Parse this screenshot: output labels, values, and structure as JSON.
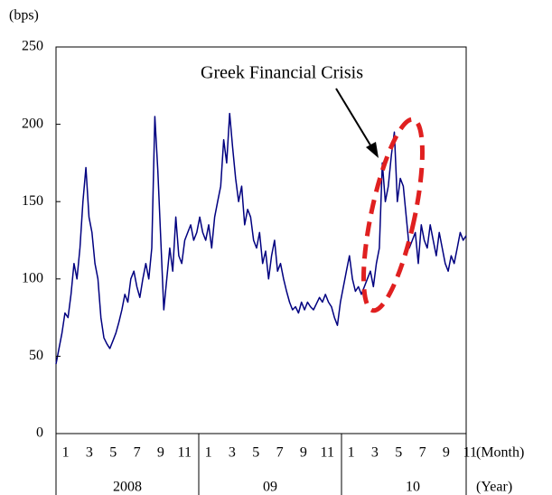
{
  "chart_data": {
    "type": "line",
    "y_label": "(bps)",
    "x_label": "(Month)",
    "year_label": "(Year)",
    "annotation": "Greek Financial Crisis",
    "ylim": [
      0,
      250
    ],
    "yticks": [
      0,
      50,
      100,
      150,
      200,
      250
    ],
    "months": [
      [
        1,
        3,
        5,
        7,
        9,
        11
      ],
      [
        1,
        3,
        5,
        7,
        9,
        11
      ],
      [
        1,
        3,
        5,
        7,
        9,
        11
      ]
    ],
    "years": [
      "2008",
      "09",
      "10"
    ],
    "color": "#000080",
    "values": [
      45,
      55,
      65,
      78,
      75,
      90,
      110,
      100,
      120,
      150,
      172,
      140,
      130,
      110,
      100,
      75,
      62,
      58,
      55,
      60,
      65,
      72,
      80,
      90,
      85,
      100,
      105,
      95,
      88,
      100,
      110,
      100,
      120,
      205,
      170,
      125,
      80,
      100,
      120,
      105,
      140,
      115,
      110,
      125,
      130,
      135,
      125,
      130,
      140,
      130,
      125,
      135,
      120,
      140,
      150,
      160,
      190,
      175,
      207,
      185,
      165,
      150,
      160,
      135,
      145,
      140,
      125,
      120,
      130,
      110,
      118,
      100,
      115,
      125,
      105,
      110,
      100,
      92,
      85,
      80,
      82,
      78,
      85,
      80,
      85,
      82,
      80,
      84,
      88,
      85,
      90,
      85,
      82,
      75,
      70,
      85,
      95,
      105,
      115,
      100,
      92,
      95,
      90,
      95,
      100,
      105,
      95,
      110,
      120,
      175,
      150,
      160,
      180,
      195,
      150,
      165,
      160,
      140,
      120,
      125,
      130,
      110,
      135,
      125,
      120,
      135,
      125,
      115,
      130,
      120,
      110,
      105,
      115,
      110,
      120,
      130,
      125,
      128
    ]
  }
}
